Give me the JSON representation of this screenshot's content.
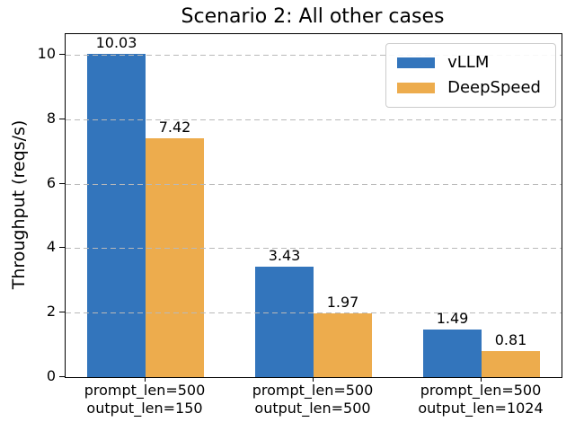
{
  "title": "Scenario 2: All other cases",
  "ylabel": "Throughput (reqs/s)",
  "legend": {
    "entries": [
      "vLLM",
      "DeepSpeed"
    ]
  },
  "chart_data": {
    "type": "bar",
    "title": "Scenario 2: All other cases",
    "xlabel": "",
    "ylabel": "Throughput (reqs/s)",
    "categories": [
      "prompt_len=500\noutput_len=150",
      "prompt_len=500\noutput_len=500",
      "prompt_len=500\noutput_len=1024"
    ],
    "series": [
      {
        "name": "vLLM",
        "color": "#3375BC",
        "values": [
          10.03,
          3.43,
          1.49
        ]
      },
      {
        "name": "DeepSpeed",
        "color": "#EDAC4D",
        "values": [
          7.42,
          1.97,
          0.81
        ]
      }
    ],
    "bar_labels": [
      "10.03",
      "3.43",
      "1.49",
      "7.42",
      "1.97",
      "0.81"
    ],
    "yticks": [
      0,
      2,
      4,
      6,
      8,
      10
    ],
    "ylim": [
      0,
      10.64
    ],
    "grid": {
      "axis": "y",
      "style": "dashed",
      "color": "#b9b9b9",
      "above_bars": true
    },
    "legend_position": "upper right",
    "background": "#ffffff",
    "spine_color": "#000000"
  }
}
